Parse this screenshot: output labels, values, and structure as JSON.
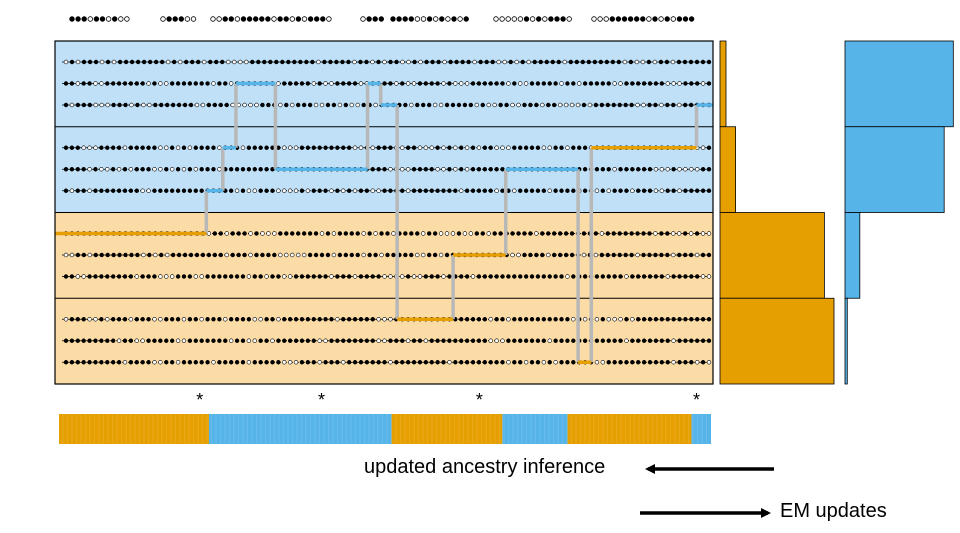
{
  "colors": {
    "population_a": "#e69f00",
    "population_b": "#56b4e9",
    "panel_a_bg": "#fbdba6",
    "panel_b_bg": "#bfe0f6",
    "copy_link": "#b8b8b8",
    "allele_filled": "#000000",
    "allele_empty": "#ffffff"
  },
  "query": {
    "blocks": [
      "●●●○●●○●○○",
      "○●●●○○",
      "○○●●○●●●●●○●●○●○●●●○",
      "○●●●",
      "●●●●○○●○●○●○●",
      "○○○○○●○●○●●●○",
      "○○○●●●●●●○●○●○●●●"
    ]
  },
  "reference_panel": {
    "groups": [
      {
        "population": "B",
        "rows": [
          "○●○●●●○●○●●●●●●●●○●○●●●○●●●○○○○●●●●●●●●●●●○●●●●●○●●○●○●●○○●○●●●○●●●●○●●●○○●○●○●●●●●○●●●●●●●●●○●○○●○●●○●●●●●●",
          "●●○●●○○●●●●●●●○●○○●●●●●●●○●●○●○●●●●●○●●●●●○●○○●●●●○○●●●●○●○○●●●●○●○○○●●●●●●○●○○●●●●●○●●○●●●●●○○●●●●●●●○○○●●●○●",
          "●○●●●○○○●●●○●○○●●●●●●●○○●●●●○○○○○●●●○●○●●●○○●●○●○○●●○●●○●●○●●●○○●●●●●○●○○●●○○●●●○●●○○○○●○●●●●●●●○○●●○●●○●●●○●"
        ]
      },
      {
        "population": "B",
        "rows": [
          "●●●○○○●●●●○●●●●●○○●○●○●●●●○●○●○●●●●●●○○○●●●●●●●●●○○●○●●●○○●●○○○●○●○●○●○●●○○○●●●●●○○●●○●●●○●●○○●○●●●●○○○○●●●○○●",
          "●●●●○●○○●○●○●●●○○●○●○●○●●●○●●●●●●●●●●●○●○●○●●●○○●○●●●●●○○○○●●●●○○●○●○●●●●●●○●●○○●○●●○○●●●○●●●○●●●●●●○○○●○○○○●●",
          "●○●●○●●●●●●●●○○●●●●●●●●●●●●●●○●○○●●●○○○○●○●●●○●○●○●●○○●●●●○●●●●●●●●○●●●●●○●●○●●●●●○●●●●○●○○●○●●●○●●●○○●●○●●●●●"
        ]
      },
      {
        "population": "A",
        "rows": [
          "●●●○●○●●○●●○○●●●●○○○●●●●○●●○●●●○●○○○●●●●●●●○●○●●●●○●○●●○●●●●○●●○○○●○○●●○●●●●●●●○●●●●●●●●●●○●●●●●●●●○●●○○●○●○○",
          "○○●●○●●●●●●●●○●○●○●●●●●●●●●○●●●○●●●●○○○○○●●●●○●●●●○●●○●●●●●○○●●○●●●●●●○○●●●○○●●●●○●●●●●○●○●●●●●●○●●●●●○●●●○●●",
          "●●○○●●●●●●●●○●●●○○○●●●○○●●●●●●●○●●○●●○○●●●●●●○●●●○●●●●○○○○●○○●●●○●●●●○●●●●●●●●●●●●●●●○●●●●●●●●●○●●●●●●○●●●●●○○"
        ]
      },
      {
        "population": "A",
        "rows": [
          "○●●●○○●○●●●○●●●○○●●●○●●○●●●○●●●●○○●●○●●●●●●●●●○●●●●●●○○○●○●●○○●●●○●●●●●●○●●○●●●●●●●●●●○●○●○●○○○●○●●●●●●●●●●●●●",
          "●●●●●●●●●○●●○○●●●●●○○●●●●●●●○●●○○●●○●●●●●●●○○●●●●●●●●○○●●●○●●○●●●●●●●●●●○○○●●●●●●●○●●●●●●●●●●●●○●●●●●●●○●●●●●●",
          "●●●●●●●●●●○●●●●○○●●○●●●●●○●●●●●○●●●●●○○○●●●○●●●○●●●●●●●○●●●●●●●●●○●●●●●●●●●○●●○●●○●○●●●●○●○○●●●●●●●●●●●○●●●○●○"
        ]
      }
    ]
  },
  "copying_path": [
    {
      "from": 0.0,
      "to": 0.23,
      "row": 6,
      "population": "A"
    },
    {
      "from": 0.23,
      "to": 0.255,
      "row": 5,
      "population": "B"
    },
    {
      "from": 0.255,
      "to": 0.275,
      "row": 3,
      "population": "B"
    },
    {
      "from": 0.275,
      "to": 0.335,
      "row": 1,
      "population": "B"
    },
    {
      "from": 0.335,
      "to": 0.475,
      "row": 4,
      "population": "B"
    },
    {
      "from": 0.475,
      "to": 0.495,
      "row": 1,
      "population": "B"
    },
    {
      "from": 0.495,
      "to": 0.52,
      "row": 2,
      "population": "B"
    },
    {
      "from": 0.52,
      "to": 0.605,
      "row": 9,
      "population": "A"
    },
    {
      "from": 0.605,
      "to": 0.685,
      "row": 7,
      "population": "A"
    },
    {
      "from": 0.685,
      "to": 0.795,
      "row": 4,
      "population": "B"
    },
    {
      "from": 0.795,
      "to": 0.815,
      "row": 11,
      "population": "A"
    },
    {
      "from": 0.815,
      "to": 0.975,
      "row": 3,
      "population": "A"
    },
    {
      "from": 0.975,
      "to": 1.0,
      "row": 2,
      "population": "B"
    }
  ],
  "markers": {
    "symbol": "*",
    "positions": [
      0.22,
      0.405,
      0.645,
      0.975
    ]
  },
  "ancestry_track": [
    {
      "from": 0.0,
      "to": 0.23,
      "population": "A"
    },
    {
      "from": 0.23,
      "to": 0.51,
      "population": "B"
    },
    {
      "from": 0.51,
      "to": 0.68,
      "population": "A"
    },
    {
      "from": 0.68,
      "to": 0.78,
      "population": "B"
    },
    {
      "from": 0.78,
      "to": 0.97,
      "population": "A"
    },
    {
      "from": 0.97,
      "to": 1.0,
      "population": "B"
    }
  ],
  "group_weights": {
    "population_a": [
      0.05,
      0.13,
      0.87,
      0.95
    ],
    "population_b": [
      0.95,
      0.87,
      0.13,
      0.02
    ]
  },
  "captions": {
    "ancestry_inference": "updated ancestry inference",
    "em_updates": "EM updates"
  }
}
